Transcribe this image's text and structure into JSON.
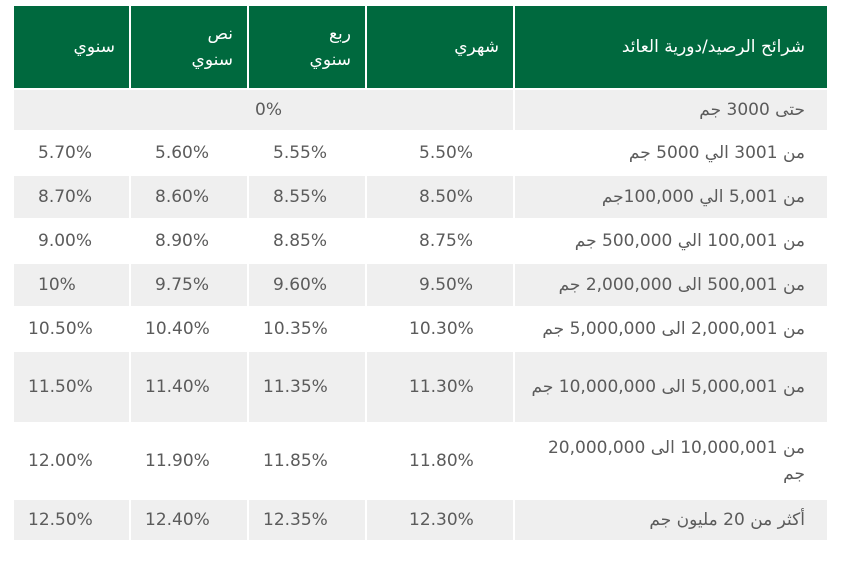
{
  "table": {
    "headers": {
      "range": "شرائح الرصيد/دورية العائد",
      "monthly": "شهري",
      "quarterly": "ربع سنوي",
      "semiannual": "نص سنوي",
      "annual": "سنوي"
    },
    "header_colors": {
      "background": "#00693e",
      "text": "#ffffff"
    },
    "first_row": {
      "range": "حتى 3000 جم",
      "rate": "0%"
    },
    "rows": [
      {
        "range": "من 3001 الي 5000 جم",
        "monthly": "5.50%",
        "quarterly": "5.55%",
        "semiannual": "5.60%",
        "annual": "5.70%"
      },
      {
        "range": "من 5,001 الي 100,000جم",
        "monthly": "8.50%",
        "quarterly": "8.55%",
        "semiannual": "8.60%",
        "annual": "8.70%"
      },
      {
        "range": "من 100,001 الي 500,000 جم",
        "monthly": "8.75%",
        "quarterly": "8.85%",
        "semiannual": "8.90%",
        "annual": "9.00%"
      },
      {
        "range": "من 500,001 الى 2,000,000 جم",
        "monthly": "9.50%",
        "quarterly": "9.60%",
        "semiannual": "9.75%",
        "annual": "10%"
      },
      {
        "range": "من 2,000,001 الى 5,000,000 جم",
        "monthly": "10.30%",
        "quarterly": "10.35%",
        "semiannual": "10.40%",
        "annual": "10.50%"
      },
      {
        "range": "من 5,000,001 الى 10,000,000 جم",
        "monthly": "11.30%",
        "quarterly": "11.35%",
        "semiannual": "11.40%",
        "annual": "11.50%"
      },
      {
        "range": "من 10,000,001 الى 20,000,000 جم",
        "monthly": "11.80%",
        "quarterly": "11.85%",
        "semiannual": "11.90%",
        "annual": "12.00%"
      },
      {
        "range": "أكثر من 20 مليون جم",
        "monthly": "12.30%",
        "quarterly": "12.35%",
        "semiannual": "12.40%",
        "annual": "12.50%"
      }
    ]
  }
}
